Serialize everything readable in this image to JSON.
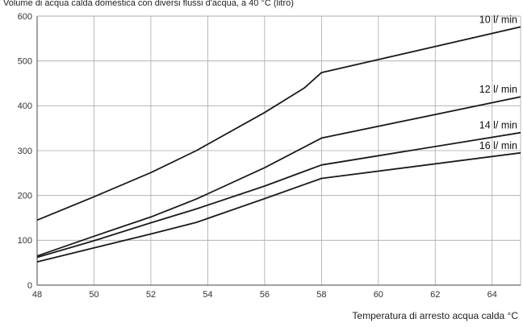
{
  "chart_data": {
    "type": "line",
    "title": "Volume di acqua calda domestica con diversi flussi d'acqua, a 40 °C (litro)",
    "xlabel": "Temperatura di arresto acqua calda °C",
    "ylabel": "",
    "xlim": [
      48,
      65
    ],
    "ylim": [
      0,
      600
    ],
    "x_ticks": [
      48,
      50,
      52,
      54,
      56,
      58,
      60,
      62,
      64
    ],
    "y_ticks": [
      0,
      100,
      200,
      300,
      400,
      500,
      600
    ],
    "grid": true,
    "series": [
      {
        "name": "10 l/ min",
        "x": [
          48,
          50,
          52,
          53.6,
          56,
          57.4,
          58,
          65
        ],
        "y": [
          145,
          197,
          251,
          300,
          385,
          440,
          474,
          576
        ]
      },
      {
        "name": "12 l/ min",
        "x": [
          48,
          50,
          52,
          53.6,
          56,
          58,
          65
        ],
        "y": [
          65,
          109,
          152,
          192,
          262,
          328,
          420
        ]
      },
      {
        "name": "14 l/ min",
        "x": [
          48,
          50,
          52,
          53.6,
          56,
          58,
          65
        ],
        "y": [
          62,
          99,
          139,
          170,
          221,
          268,
          340
        ]
      },
      {
        "name": "16 l/ min",
        "x": [
          48,
          50,
          52,
          53.6,
          56,
          58,
          65
        ],
        "y": [
          52,
          83,
          114,
          140,
          193,
          238,
          295
        ]
      }
    ]
  }
}
